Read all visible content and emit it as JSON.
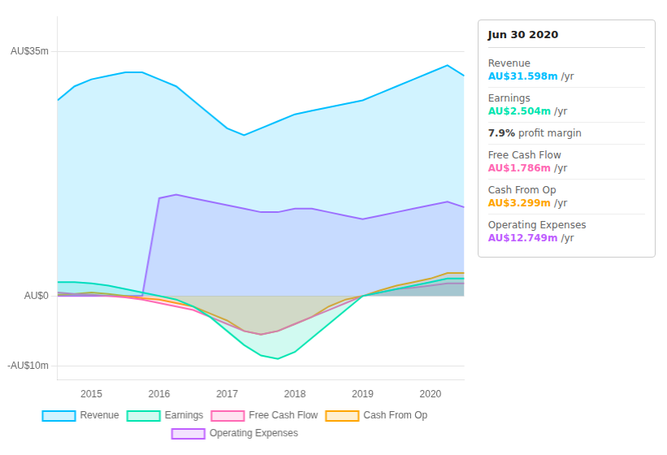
{
  "chart_data": {
    "type": "area",
    "x": [
      2014.5,
      2014.75,
      2015.0,
      2015.25,
      2015.5,
      2015.75,
      2016.0,
      2016.25,
      2016.5,
      2016.75,
      2017.0,
      2017.25,
      2017.5,
      2017.75,
      2018.0,
      2018.25,
      2018.5,
      2018.75,
      2019.0,
      2019.25,
      2019.5,
      2019.75,
      2020.0,
      2020.25,
      2020.5
    ],
    "series": [
      {
        "name": "Revenue",
        "color": "#00bfff",
        "values": [
          28,
          30,
          31,
          31.5,
          32,
          32,
          31,
          30,
          28,
          26,
          24,
          23,
          24,
          25,
          26,
          26.5,
          27,
          27.5,
          28,
          29,
          30,
          31,
          32,
          33,
          31.5
        ]
      },
      {
        "name": "Earnings",
        "color": "#00e5b0",
        "values": [
          2,
          2,
          1.8,
          1.5,
          1,
          0.5,
          0,
          -0.5,
          -1.5,
          -3,
          -5,
          -7,
          -8.5,
          -9,
          -8,
          -6,
          -4,
          -2,
          0,
          0.5,
          1,
          1.5,
          2,
          2.5,
          2.5
        ]
      },
      {
        "name": "Free Cash Flow",
        "color": "#ff69b4",
        "values": [
          0.5,
          0.3,
          0.2,
          0,
          -0.2,
          -0.5,
          -1,
          -1.5,
          -2,
          -3,
          -4,
          -5,
          -5.5,
          -5,
          -4,
          -3,
          -2,
          -1,
          0,
          0.5,
          1,
          1.2,
          1.5,
          1.8,
          1.8
        ]
      },
      {
        "name": "Cash From Op",
        "color": "#ffa500",
        "values": [
          0.2,
          0.3,
          0.5,
          0.3,
          0,
          -0.3,
          -0.5,
          -1,
          -1.5,
          -2.5,
          -3.5,
          -5,
          -5.5,
          -5,
          -4,
          -3,
          -1.5,
          -0.5,
          0,
          0.8,
          1.5,
          2,
          2.5,
          3.3,
          3.3
        ]
      },
      {
        "name": "Operating Expenses",
        "color": "#bf5fff",
        "values": [
          0,
          0,
          0,
          0,
          0,
          0,
          14,
          14.5,
          14,
          13.5,
          13,
          12.5,
          12,
          12,
          12.5,
          12.5,
          12,
          11.5,
          11,
          11.5,
          12,
          12.5,
          13,
          13.5,
          12.7
        ]
      }
    ],
    "xlim": [
      2014.5,
      2020.5
    ],
    "xticks": [
      2015,
      2016,
      2017,
      2018,
      2019,
      2020
    ],
    "ylim": [
      -12,
      40
    ],
    "yticks": [
      {
        "value": -10,
        "label": "-AU$10m"
      },
      {
        "value": 0,
        "label": "AU$0"
      },
      {
        "value": 35,
        "label": "AU$35m"
      }
    ],
    "grid": true,
    "legend": "bottom",
    "annotations": [
      {
        "title": "Jun 30 2020",
        "rows": [
          {
            "label": "Revenue",
            "value": "AU$31.598m",
            "unit": "/yr",
            "color": "#00bfff"
          },
          {
            "label": "Earnings",
            "value": "AU$2.504m",
            "unit": "/yr",
            "color": "#00e5b0"
          },
          {
            "value": "7.9%",
            "unit": "profit margin"
          },
          {
            "label": "Free Cash Flow",
            "value": "AU$1.786m",
            "unit": "/yr",
            "color": "#ff69b4"
          },
          {
            "label": "Cash From Op",
            "value": "AU$3.299m",
            "unit": "/yr",
            "color": "#ffa500"
          },
          {
            "label": "Operating Expenses",
            "value": "AU$12.749m",
            "unit": "/yr",
            "color": "#bf5fff"
          }
        ]
      }
    ]
  }
}
